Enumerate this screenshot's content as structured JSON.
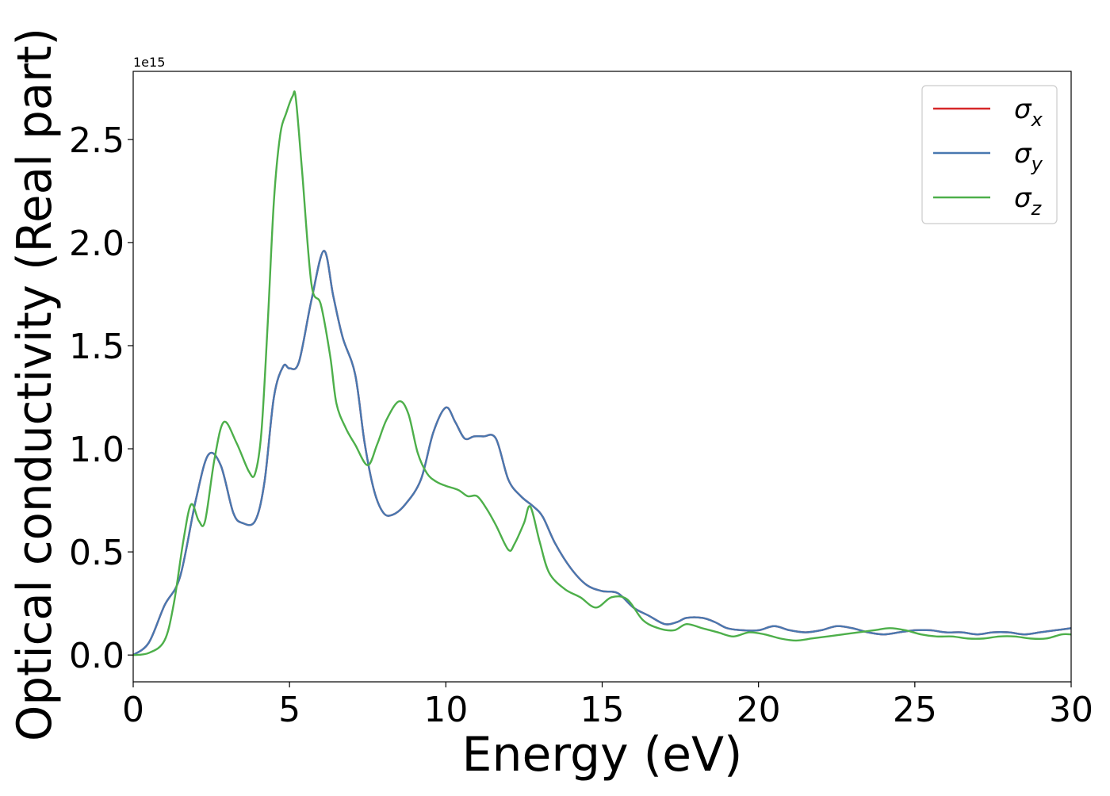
{
  "chart_data": {
    "type": "line",
    "title": "",
    "xlabel": "Energy (eV)",
    "ylabel": "Optical conductivity (Real part)",
    "offset_text": "1e15",
    "y_multiplier": 1000000000000000.0,
    "xlim": [
      0,
      30
    ],
    "ylim": [
      -0.13,
      2.83
    ],
    "xticks": [
      0,
      5,
      10,
      15,
      20,
      25,
      30
    ],
    "xtick_labels": [
      "0",
      "5",
      "10",
      "15",
      "20",
      "25",
      "30"
    ],
    "yticks": [
      0.0,
      0.5,
      1.0,
      1.5,
      2.0,
      2.5
    ],
    "ytick_labels": [
      "0.0",
      "0.5",
      "1.0",
      "1.5",
      "2.0",
      "2.5"
    ],
    "grid": false,
    "legend_position": "top-right",
    "series": [
      {
        "name": "σ",
        "name_sub": "x",
        "color": "#d62728",
        "x": [
          0,
          0.5,
          1.0,
          1.5,
          2.0,
          2.4,
          2.8,
          3.2,
          3.5,
          3.9,
          4.2,
          4.5,
          4.8,
          5.0,
          5.3,
          5.7,
          6.1,
          6.4,
          6.7,
          7.1,
          7.4,
          7.7,
          8.0,
          8.3,
          8.7,
          9.2,
          9.6,
          10.0,
          10.3,
          10.6,
          10.9,
          11.2,
          11.6,
          12.0,
          12.4,
          12.8,
          13.1,
          13.5,
          14.0,
          14.5,
          15.0,
          15.5,
          16.0,
          16.5,
          17.0,
          17.4,
          17.7,
          18.2,
          18.6,
          19.0,
          19.5,
          20.0,
          20.5,
          21.0,
          21.5,
          22.0,
          22.5,
          23.0,
          23.5,
          24.0,
          24.5,
          25.0,
          25.5,
          26.0,
          26.5,
          27.0,
          27.5,
          28.0,
          28.5,
          29.0,
          29.5,
          30.0
        ],
        "y": [
          0.0,
          0.06,
          0.24,
          0.38,
          0.75,
          0.97,
          0.92,
          0.69,
          0.64,
          0.65,
          0.84,
          1.25,
          1.4,
          1.39,
          1.42,
          1.72,
          1.96,
          1.74,
          1.54,
          1.36,
          1.03,
          0.8,
          0.69,
          0.68,
          0.73,
          0.85,
          1.08,
          1.2,
          1.13,
          1.05,
          1.06,
          1.06,
          1.05,
          0.85,
          0.77,
          0.72,
          0.67,
          0.54,
          0.42,
          0.34,
          0.31,
          0.3,
          0.23,
          0.19,
          0.15,
          0.16,
          0.18,
          0.18,
          0.16,
          0.13,
          0.12,
          0.12,
          0.14,
          0.12,
          0.11,
          0.12,
          0.14,
          0.13,
          0.11,
          0.1,
          0.11,
          0.12,
          0.12,
          0.11,
          0.11,
          0.1,
          0.11,
          0.11,
          0.1,
          0.11,
          0.12,
          0.13
        ]
      },
      {
        "name": "σ",
        "name_sub": "y",
        "color": "#4878b0",
        "x": [
          0,
          0.5,
          1.0,
          1.5,
          2.0,
          2.4,
          2.8,
          3.2,
          3.5,
          3.9,
          4.2,
          4.5,
          4.8,
          5.0,
          5.3,
          5.7,
          6.1,
          6.4,
          6.7,
          7.1,
          7.4,
          7.7,
          8.0,
          8.3,
          8.7,
          9.2,
          9.6,
          10.0,
          10.3,
          10.6,
          10.9,
          11.2,
          11.6,
          12.0,
          12.4,
          12.8,
          13.1,
          13.5,
          14.0,
          14.5,
          15.0,
          15.5,
          16.0,
          16.5,
          17.0,
          17.4,
          17.7,
          18.2,
          18.6,
          19.0,
          19.5,
          20.0,
          20.5,
          21.0,
          21.5,
          22.0,
          22.5,
          23.0,
          23.5,
          24.0,
          24.5,
          25.0,
          25.5,
          26.0,
          26.5,
          27.0,
          27.5,
          28.0,
          28.5,
          29.0,
          29.5,
          30.0
        ],
        "y": [
          0.0,
          0.06,
          0.24,
          0.38,
          0.75,
          0.97,
          0.92,
          0.69,
          0.64,
          0.65,
          0.84,
          1.25,
          1.4,
          1.39,
          1.42,
          1.72,
          1.96,
          1.74,
          1.54,
          1.36,
          1.03,
          0.8,
          0.69,
          0.68,
          0.73,
          0.85,
          1.08,
          1.2,
          1.13,
          1.05,
          1.06,
          1.06,
          1.05,
          0.85,
          0.77,
          0.72,
          0.67,
          0.54,
          0.42,
          0.34,
          0.31,
          0.3,
          0.23,
          0.19,
          0.15,
          0.16,
          0.18,
          0.18,
          0.16,
          0.13,
          0.12,
          0.12,
          0.14,
          0.12,
          0.11,
          0.12,
          0.14,
          0.13,
          0.11,
          0.1,
          0.11,
          0.12,
          0.12,
          0.11,
          0.11,
          0.1,
          0.11,
          0.11,
          0.1,
          0.11,
          0.12,
          0.13
        ]
      },
      {
        "name": "σ",
        "name_sub": "z",
        "color": "#4daf4a",
        "x": [
          0,
          0.5,
          1.0,
          1.3,
          1.6,
          1.85,
          2.1,
          2.3,
          2.6,
          2.9,
          3.3,
          3.7,
          3.9,
          4.1,
          4.3,
          4.5,
          4.7,
          4.9,
          5.1,
          5.2,
          5.4,
          5.7,
          6.0,
          6.3,
          6.5,
          6.8,
          7.1,
          7.5,
          7.8,
          8.1,
          8.5,
          8.8,
          9.1,
          9.4,
          9.7,
          10.0,
          10.4,
          10.7,
          11.0,
          11.3,
          11.6,
          12.0,
          12.2,
          12.5,
          12.7,
          13.0,
          13.3,
          13.8,
          14.3,
          14.8,
          15.3,
          15.8,
          16.3,
          16.8,
          17.3,
          17.7,
          18.2,
          18.7,
          19.2,
          19.7,
          20.2,
          20.7,
          21.2,
          21.7,
          22.2,
          22.7,
          23.2,
          23.7,
          24.2,
          24.7,
          25.2,
          25.7,
          26.2,
          26.7,
          27.2,
          27.7,
          28.2,
          28.7,
          29.2,
          29.7,
          30.0
        ],
        "y": [
          0.0,
          0.01,
          0.07,
          0.25,
          0.55,
          0.73,
          0.65,
          0.65,
          0.95,
          1.13,
          1.03,
          0.89,
          0.88,
          1.08,
          1.6,
          2.2,
          2.52,
          2.63,
          2.71,
          2.7,
          2.35,
          1.8,
          1.7,
          1.45,
          1.22,
          1.1,
          1.02,
          0.92,
          1.02,
          1.14,
          1.23,
          1.17,
          0.98,
          0.88,
          0.84,
          0.82,
          0.8,
          0.77,
          0.77,
          0.71,
          0.63,
          0.51,
          0.54,
          0.64,
          0.72,
          0.55,
          0.4,
          0.32,
          0.28,
          0.23,
          0.28,
          0.27,
          0.17,
          0.13,
          0.12,
          0.15,
          0.13,
          0.11,
          0.09,
          0.11,
          0.1,
          0.08,
          0.07,
          0.08,
          0.09,
          0.1,
          0.11,
          0.12,
          0.13,
          0.12,
          0.1,
          0.09,
          0.09,
          0.08,
          0.08,
          0.09,
          0.09,
          0.08,
          0.08,
          0.1,
          0.1
        ]
      }
    ]
  }
}
